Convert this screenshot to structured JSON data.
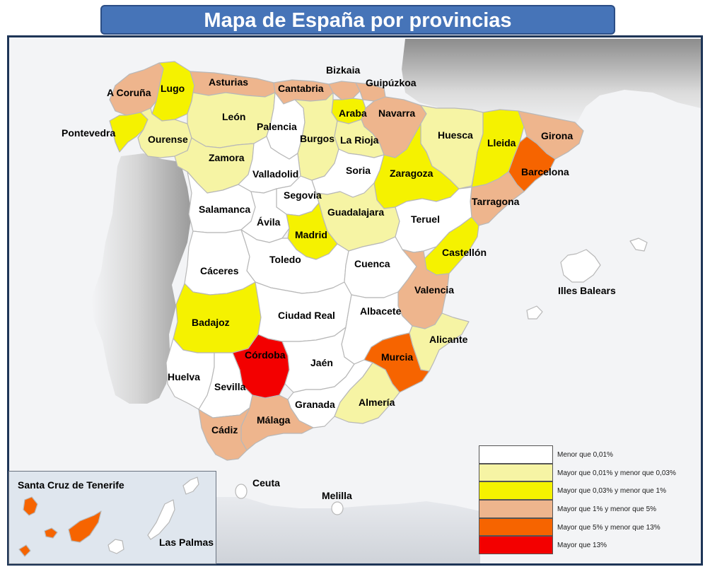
{
  "title": "Mapa de España por provincias",
  "colors": {
    "sea": "#f3f4f6",
    "land_shadow": "#a8a8a8",
    "frame": "#1e3557",
    "title_bg": "#4674b8",
    "c0": "#ffffff",
    "c1": "#f6f4a4",
    "c2": "#f5f200",
    "c3": "#eeb58d",
    "c4": "#f66400",
    "c5": "#f30000"
  },
  "legend": [
    {
      "label": "Menor que 0,01%",
      "color": "#ffffff"
    },
    {
      "label": "Mayor que 0,01% y menor que 0,03%",
      "color": "#f6f4a4"
    },
    {
      "label": "Mayor que 0,03% y menor que 1%",
      "color": "#f5f200"
    },
    {
      "label": "Mayor que 1% y menor que 5%",
      "color": "#eeb58d"
    },
    {
      "label": "Mayor que 5% y menor que 13%",
      "color": "#f66400"
    },
    {
      "label": "Mayor que 13%",
      "color": "#f30000"
    }
  ],
  "provinces": [
    {
      "name": "A Coruña",
      "category": 3
    },
    {
      "name": "Lugo",
      "category": 2
    },
    {
      "name": "Asturias",
      "category": 3
    },
    {
      "name": "Cantabria",
      "category": 3
    },
    {
      "name": "Bizkaia",
      "category": 3
    },
    {
      "name": "Guipúzkoa",
      "category": 3
    },
    {
      "name": "Araba",
      "category": 2
    },
    {
      "name": "Navarra",
      "category": 3
    },
    {
      "name": "Pontevedra",
      "category": 2
    },
    {
      "name": "Ourense",
      "category": 1
    },
    {
      "name": "León",
      "category": 1
    },
    {
      "name": "Palencia",
      "category": 0
    },
    {
      "name": "Burgos",
      "category": 1
    },
    {
      "name": "La Rioja",
      "category": 1
    },
    {
      "name": "Huesca",
      "category": 1
    },
    {
      "name": "Lleida",
      "category": 2
    },
    {
      "name": "Girona",
      "category": 3
    },
    {
      "name": "Barcelona",
      "category": 4
    },
    {
      "name": "Zamora",
      "category": 1
    },
    {
      "name": "Valladolid",
      "category": 0
    },
    {
      "name": "Soria",
      "category": 0
    },
    {
      "name": "Zaragoza",
      "category": 2
    },
    {
      "name": "Tarragona",
      "category": 3
    },
    {
      "name": "Segovia",
      "category": 0
    },
    {
      "name": "Salamanca",
      "category": 0
    },
    {
      "name": "Ávila",
      "category": 0
    },
    {
      "name": "Guadalajara",
      "category": 1
    },
    {
      "name": "Teruel",
      "category": 0
    },
    {
      "name": "Madrid",
      "category": 2
    },
    {
      "name": "Castellón",
      "category": 2
    },
    {
      "name": "Toledo",
      "category": 0
    },
    {
      "name": "Cáceres",
      "category": 0
    },
    {
      "name": "Cuenca",
      "category": 0
    },
    {
      "name": "Valencia",
      "category": 3
    },
    {
      "name": "Illes Balears",
      "category": 2
    },
    {
      "name": "Badajoz",
      "category": 0
    },
    {
      "name": "Ciudad Real",
      "category": 0
    },
    {
      "name": "Albacete",
      "category": 1
    },
    {
      "name": "Alicante",
      "category": 4
    },
    {
      "name": "Murcia",
      "category": 5
    },
    {
      "name": "Córdoba",
      "category": 0
    },
    {
      "name": "Jaén",
      "category": 0
    },
    {
      "name": "Huelva",
      "category": 0
    },
    {
      "name": "Sevilla",
      "category": 0
    },
    {
      "name": "Granada",
      "category": 1
    },
    {
      "name": "Almería",
      "category": 3
    },
    {
      "name": "Málaga",
      "category": 3
    },
    {
      "name": "Cádiz",
      "category": 0
    },
    {
      "name": "Ceuta",
      "category": 0
    },
    {
      "name": "Melilla",
      "category": 0
    },
    {
      "name": "Santa Cruz de Tenerife",
      "category": 4
    },
    {
      "name": "Las Palmas",
      "category": 0
    }
  ]
}
